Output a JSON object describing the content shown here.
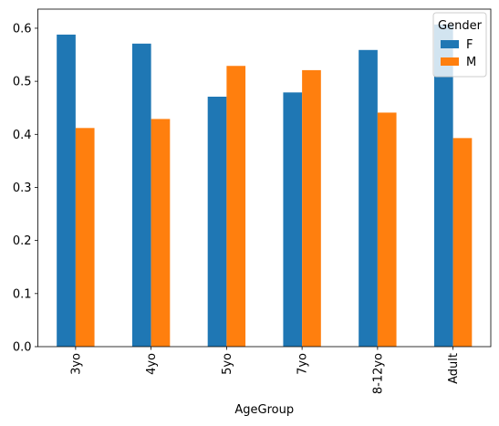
{
  "chart_data": {
    "type": "bar",
    "categories": [
      "3yo",
      "4yo",
      "5yo",
      "7yo",
      "8-12yo",
      "Adult"
    ],
    "series": [
      {
        "name": "F",
        "values": [
          0.588,
          0.571,
          0.471,
          0.479,
          0.559,
          0.607
        ],
        "color": "#1f77b4"
      },
      {
        "name": "M",
        "values": [
          0.412,
          0.429,
          0.529,
          0.521,
          0.441,
          0.393
        ],
        "color": "#ff7f0e"
      }
    ],
    "xlabel": "AgeGroup",
    "ylabel": "",
    "ylim": [
      0,
      0.636
    ],
    "yticks": [
      0.0,
      0.1,
      0.2,
      0.3,
      0.4,
      0.5,
      0.6
    ],
    "ytick_labels": [
      "0.0",
      "0.1",
      "0.2",
      "0.3",
      "0.4",
      "0.5",
      "0.6"
    ],
    "legend": {
      "title": "Gender",
      "placement": "top-right"
    },
    "grid": false
  }
}
